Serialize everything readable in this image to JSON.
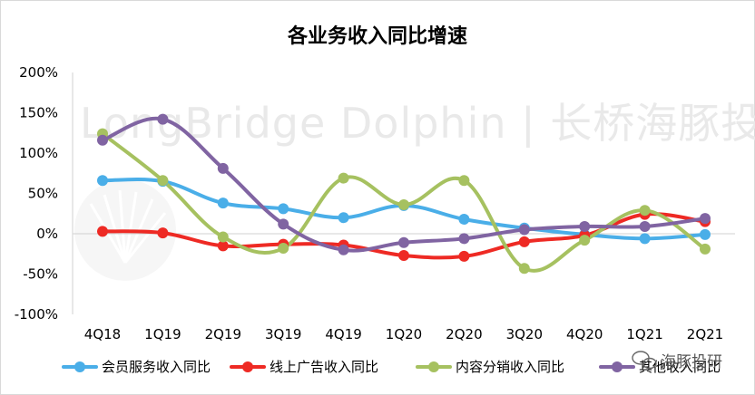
{
  "chart_data": {
    "type": "line",
    "title": "各业务收入同比增速",
    "categories": [
      "4Q18",
      "1Q19",
      "2Q19",
      "3Q19",
      "4Q19",
      "1Q20",
      "2Q20",
      "3Q20",
      "4Q20",
      "1Q21",
      "2Q21"
    ],
    "y_ticks": [
      "200%",
      "150%",
      "100%",
      "50%",
      "0%",
      "-50%",
      "-100%"
    ],
    "ylim": [
      -100,
      200
    ],
    "grid": false,
    "legend_position": "bottom",
    "series": [
      {
        "name": "会员服务收入同比",
        "color": "#4aaee8",
        "values": [
          66,
          65,
          38,
          31,
          20,
          35,
          18,
          7,
          -1,
          -6,
          -1
        ]
      },
      {
        "name": "线上广告收入同比",
        "color": "#ee2a24",
        "values": [
          3,
          1,
          -15,
          -13,
          -14,
          -27,
          -28,
          -10,
          -2,
          24,
          15
        ]
      },
      {
        "name": "内容分销收入同比",
        "color": "#a6c160",
        "values": [
          124,
          66,
          -4,
          -18,
          69,
          36,
          66,
          -43,
          -8,
          29,
          -19
        ]
      },
      {
        "name": "其他收入同比",
        "color": "#8064a2",
        "values": [
          116,
          142,
          81,
          12,
          -20,
          -11,
          -6,
          5,
          9,
          9,
          19
        ]
      }
    ]
  },
  "watermark": {
    "text": "LongBridge Dolphin | 长桥海豚投研",
    "badge": "海豚投研"
  }
}
